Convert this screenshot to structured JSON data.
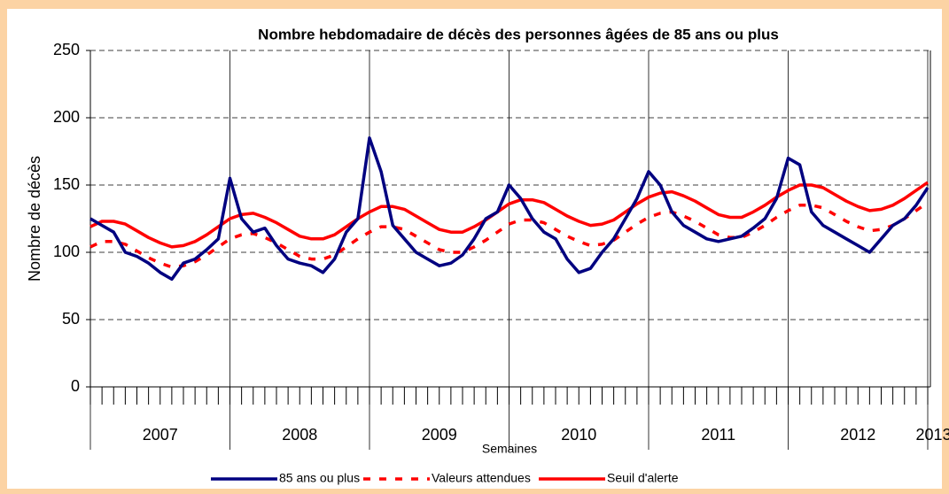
{
  "chart_data": {
    "type": "line",
    "title": "Nombre hebdomadaire de décès des personnes âgées de 85 ans ou plus",
    "y_label": "Nombre de décès",
    "x_label": "Semaines",
    "categories": [
      null,
      null,
      null,
      null,
      null,
      null,
      null,
      null,
      null,
      null,
      null,
      null,
      null,
      null,
      null,
      null,
      null,
      null,
      null,
      null,
      null,
      null,
      null,
      null,
      null,
      null,
      null,
      null,
      null,
      null,
      null,
      null,
      null,
      null,
      null,
      null,
      null,
      null,
      null,
      null,
      null,
      null,
      null,
      null,
      null,
      null,
      null,
      null,
      null,
      null,
      null,
      null,
      null,
      null,
      null,
      null,
      null,
      null,
      null,
      null,
      null,
      null,
      null,
      null,
      null,
      null,
      null,
      null,
      null,
      null,
      null,
      null,
      null
    ],
    "x_groups": [
      {
        "label": "2007",
        "size": 12
      },
      {
        "label": "2008",
        "size": 12
      },
      {
        "label": "2009",
        "size": 12
      },
      {
        "label": "2010",
        "size": 12
      },
      {
        "label": "2011",
        "size": 12
      },
      {
        "label": "2012",
        "size": 12
      },
      {
        "label": "2013",
        "size": 1
      }
    ],
    "ylim": [
      0,
      250
    ],
    "yticks": [
      0,
      50,
      100,
      150,
      200,
      250
    ],
    "grid": true,
    "legend": "bottom",
    "series": [
      {
        "name": "85 ans ou plus",
        "color": "#000080",
        "style": "solid",
        "values": [
          125,
          120,
          115,
          100,
          97,
          92,
          85,
          80,
          92,
          95,
          102,
          110,
          155,
          125,
          115,
          118,
          105,
          95,
          92,
          90,
          85,
          95,
          115,
          125,
          185,
          160,
          120,
          110,
          100,
          95,
          90,
          92,
          98,
          110,
          125,
          130,
          150,
          140,
          125,
          115,
          110,
          95,
          85,
          88,
          100,
          110,
          125,
          140,
          160,
          150,
          130,
          120,
          115,
          110,
          108,
          110,
          112,
          118,
          125,
          140,
          170,
          165,
          130,
          120,
          115,
          110,
          105,
          100,
          110,
          120,
          125,
          135,
          148
        ]
      },
      {
        "name": "Valeurs attendues",
        "color": "#ff0000",
        "style": "dashed",
        "values": [
          104,
          108,
          108,
          106,
          101,
          96,
          92,
          89,
          90,
          93,
          98,
          104,
          110,
          113,
          114,
          111,
          107,
          102,
          97,
          95,
          95,
          98,
          104,
          110,
          115,
          119,
          119,
          117,
          112,
          107,
          102,
          100,
          100,
          104,
          109,
          115,
          121,
          124,
          124,
          122,
          117,
          112,
          108,
          105,
          106,
          109,
          115,
          121,
          126,
          129,
          130,
          127,
          123,
          118,
          113,
          111,
          111,
          115,
          120,
          126,
          131,
          135,
          135,
          133,
          128,
          123,
          119,
          116,
          117,
          120,
          125,
          131,
          137
        ]
      },
      {
        "name": "Seuil d'alerte",
        "color": "#ff0000",
        "style": "solid",
        "values": [
          119,
          123,
          123,
          121,
          116,
          111,
          107,
          104,
          105,
          108,
          113,
          119,
          125,
          128,
          129,
          126,
          122,
          117,
          112,
          110,
          110,
          113,
          119,
          125,
          130,
          134,
          134,
          132,
          127,
          122,
          117,
          115,
          115,
          119,
          124,
          130,
          136,
          139,
          139,
          137,
          132,
          127,
          123,
          120,
          121,
          124,
          130,
          136,
          141,
          144,
          145,
          142,
          138,
          133,
          128,
          126,
          126,
          130,
          135,
          141,
          146,
          150,
          150,
          148,
          143,
          138,
          134,
          131,
          132,
          135,
          140,
          146,
          152
        ]
      }
    ]
  }
}
